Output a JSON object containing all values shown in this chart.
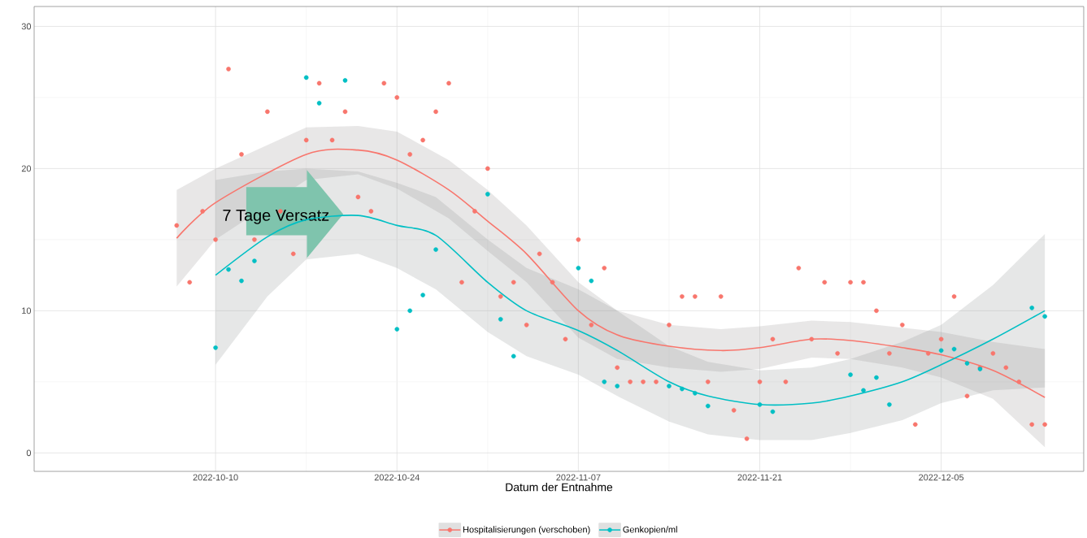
{
  "chart_data": {
    "type": "scatter",
    "xlabel": "Datum der Entnahme",
    "xlim": [
      "2022-09-26",
      "2022-12-16"
    ],
    "ylim": [
      -1.3,
      31.4
    ],
    "xticks": [
      "2022-10-10",
      "2022-10-24",
      "2022-11-07",
      "2022-11-21",
      "2022-12-05"
    ],
    "yticks": [
      0,
      10,
      20,
      30
    ],
    "grid": true,
    "legend": "bottom",
    "marker": "circle",
    "annotations": [
      "7 Tage Versatz"
    ],
    "series": [
      {
        "color": "#f8766d",
        "x": [
          "2022-10-07",
          "2022-10-08",
          "2022-10-09",
          "2022-10-10",
          "2022-10-11",
          "2022-10-12",
          "2022-10-13",
          "2022-10-14",
          "2022-10-15",
          "2022-10-16",
          "2022-10-17",
          "2022-10-18",
          "2022-10-19",
          "2022-10-20",
          "2022-10-21",
          "2022-10-22",
          "2022-10-23",
          "2022-10-24",
          "2022-10-25",
          "2022-10-26",
          "2022-10-27",
          "2022-10-28",
          "2022-10-29",
          "2022-10-30",
          "2022-10-31",
          "2022-11-01",
          "2022-11-02",
          "2022-11-03",
          "2022-11-04",
          "2022-11-05",
          "2022-11-06",
          "2022-11-07",
          "2022-11-08",
          "2022-11-09",
          "2022-11-10",
          "2022-11-11",
          "2022-11-12",
          "2022-11-13",
          "2022-11-14",
          "2022-11-15",
          "2022-11-16",
          "2022-11-17",
          "2022-11-18",
          "2022-11-19",
          "2022-11-20",
          "2022-11-21",
          "2022-11-22",
          "2022-11-23",
          "2022-11-24",
          "2022-11-25",
          "2022-11-26",
          "2022-11-27",
          "2022-11-28",
          "2022-11-29",
          "2022-11-30",
          "2022-12-01",
          "2022-12-02",
          "2022-12-03",
          "2022-12-04",
          "2022-12-05",
          "2022-12-06",
          "2022-12-07",
          "2022-12-08",
          "2022-12-09",
          "2022-12-10",
          "2022-12-11",
          "2022-12-12",
          "2022-12-13"
        ],
        "values": [
          16,
          12,
          17,
          15,
          27,
          21,
          15,
          24,
          17,
          14,
          22,
          26,
          22,
          24,
          18,
          17,
          26,
          25,
          21,
          22,
          24,
          26,
          12,
          17,
          20,
          11,
          12,
          9,
          14,
          12,
          8,
          15,
          9,
          13,
          6,
          5,
          5,
          5,
          9,
          11,
          11,
          5,
          11,
          3,
          1,
          5,
          8,
          5,
          13,
          8,
          12,
          7,
          12,
          12,
          10,
          7,
          9,
          2,
          7,
          8,
          11,
          4,
          6,
          7,
          6,
          5,
          2,
          2
        ]
      },
      {
        "color": "#00bfc4",
        "x": [
          "2022-10-10",
          "2022-10-11",
          "2022-10-12",
          "2022-10-13",
          "2022-10-17",
          "2022-10-18",
          "2022-10-20",
          "2022-10-24",
          "2022-10-25",
          "2022-10-26",
          "2022-10-27",
          "2022-10-31",
          "2022-11-01",
          "2022-11-02",
          "2022-11-07",
          "2022-11-08",
          "2022-11-09",
          "2022-11-10",
          "2022-11-14",
          "2022-11-15",
          "2022-11-16",
          "2022-11-17",
          "2022-11-21",
          "2022-11-22",
          "2022-11-28",
          "2022-11-29",
          "2022-11-30",
          "2022-12-01",
          "2022-12-05",
          "2022-12-06",
          "2022-12-07",
          "2022-12-08",
          "2022-12-12",
          "2022-12-13"
        ],
        "values": [
          7.4,
          12.9,
          12.1,
          13.5,
          26.4,
          24.6,
          26.2,
          8.7,
          10.0,
          11.1,
          14.3,
          18.2,
          9.4,
          6.8,
          13.0,
          12.1,
          5.0,
          4.7,
          4.7,
          4.5,
          4.2,
          3.3,
          3.4,
          2.9,
          5.5,
          4.4,
          5.3,
          3.4,
          7.2,
          7.3,
          6.3,
          5.9,
          10.2,
          9.6
        ]
      },
      {
        "type": "line",
        "marker": "none",
        "name": "Hospitalisierungen (verschoben)",
        "color": "#f8766d",
        "x": [
          "2022-10-07",
          "2022-10-10",
          "2022-10-17",
          "2022-10-21",
          "2022-10-24",
          "2022-10-28",
          "2022-10-31",
          "2022-11-03",
          "2022-11-07",
          "2022-11-10",
          "2022-11-14",
          "2022-11-18",
          "2022-11-21",
          "2022-11-25",
          "2022-11-28",
          "2022-12-02",
          "2022-12-05",
          "2022-12-09",
          "2022-12-13"
        ],
        "values": [
          15.1,
          17.6,
          21.0,
          21.3,
          20.6,
          18.5,
          16.3,
          14.0,
          10.0,
          8.3,
          7.5,
          7.2,
          7.4,
          8.0,
          7.9,
          7.4,
          6.9,
          5.8,
          3.9
        ],
        "lower": [
          11.7,
          15.0,
          19.2,
          19.6,
          18.6,
          16.5,
          14.2,
          12.0,
          8.1,
          6.6,
          6.0,
          5.7,
          5.9,
          6.7,
          6.6,
          6.0,
          5.3,
          3.8,
          0.4
        ],
        "upper": [
          18.5,
          20.0,
          22.9,
          23.0,
          22.6,
          20.6,
          18.5,
          16.0,
          12.0,
          10.0,
          9.0,
          8.7,
          8.9,
          9.3,
          9.2,
          8.8,
          8.5,
          7.8,
          7.3
        ]
      },
      {
        "type": "line",
        "marker": "none",
        "name": "Genkopien/ml",
        "color": "#00bfc4",
        "x": [
          "2022-10-10",
          "2022-10-14",
          "2022-10-17",
          "2022-10-21",
          "2022-10-24",
          "2022-10-27",
          "2022-10-31",
          "2022-11-03",
          "2022-11-07",
          "2022-11-10",
          "2022-11-14",
          "2022-11-17",
          "2022-11-21",
          "2022-11-25",
          "2022-11-28",
          "2022-12-02",
          "2022-12-05",
          "2022-12-09",
          "2022-12-13"
        ],
        "values": [
          12.5,
          15.2,
          16.4,
          16.7,
          16.0,
          15.3,
          12.0,
          10.0,
          8.6,
          7.2,
          5.0,
          4.0,
          3.4,
          3.5,
          4.0,
          5.0,
          6.2,
          8.0,
          10.0
        ],
        "lower": [
          6.2,
          11.0,
          13.6,
          14.0,
          13.0,
          11.5,
          8.5,
          6.8,
          5.5,
          4.0,
          2.2,
          1.3,
          0.9,
          0.9,
          1.4,
          2.3,
          3.5,
          4.4,
          4.6
        ],
        "upper": [
          19.2,
          19.8,
          20.0,
          19.8,
          19.0,
          18.0,
          15.0,
          13.0,
          11.5,
          10.0,
          7.5,
          6.4,
          5.8,
          6.0,
          6.6,
          7.8,
          9.0,
          11.8,
          15.4
        ]
      }
    ]
  }
}
